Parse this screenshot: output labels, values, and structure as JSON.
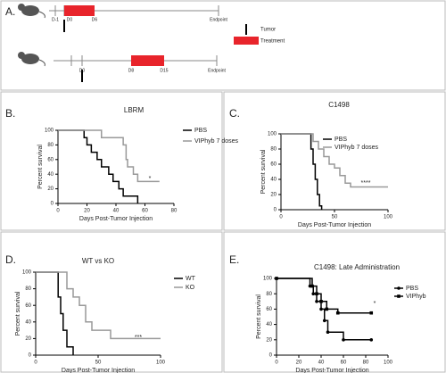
{
  "panels": [
    "A.",
    "B.",
    "C.",
    "D.",
    "E."
  ],
  "schematic": {
    "timeline1": [
      "D-1",
      "D0",
      "D6",
      "Endpoint"
    ],
    "timeline2": [
      "D0",
      "D8",
      "D15",
      "Endpoint"
    ],
    "legend": [
      "Tumor",
      "Treatment"
    ]
  },
  "chart_data": [
    {
      "type": "line",
      "step": true,
      "title": "LBRM",
      "xlabel": "Days Post-Tumor Injection",
      "ylabel": "Percent survival",
      "xlim": [
        0,
        80
      ],
      "xticks": [
        0,
        20,
        40,
        60,
        80
      ],
      "ylim": [
        0,
        100
      ],
      "yticks": [
        0,
        20,
        40,
        60,
        80,
        100
      ],
      "annotation": "*",
      "series": [
        {
          "name": "PBS",
          "color": "#000000",
          "x": [
            0,
            18,
            20,
            23,
            27,
            30,
            35,
            38,
            42,
            45,
            55
          ],
          "values": [
            100,
            90,
            80,
            70,
            60,
            50,
            40,
            30,
            20,
            10,
            0
          ]
        },
        {
          "name": "VIPhyb 7 doses",
          "color": "#999999",
          "x": [
            0,
            30,
            45,
            47,
            48,
            52,
            55,
            70
          ],
          "values": [
            100,
            90,
            80,
            60,
            50,
            40,
            30,
            30
          ]
        }
      ]
    },
    {
      "type": "line",
      "step": true,
      "title": "C1498",
      "xlabel": "Days Post-Tumor Injection",
      "ylabel": "Percent survival",
      "xlim": [
        0,
        100
      ],
      "xticks": [
        0,
        50,
        100
      ],
      "ylim": [
        0,
        100
      ],
      "yticks": [
        0,
        20,
        40,
        60,
        80,
        100
      ],
      "annotation": "****",
      "series": [
        {
          "name": "PBS",
          "color": "#000000",
          "x": [
            0,
            28,
            30,
            32,
            34,
            36,
            38
          ],
          "values": [
            100,
            80,
            60,
            40,
            20,
            5,
            0
          ]
        },
        {
          "name": "VIPhyb 7 doses",
          "color": "#999999",
          "x": [
            0,
            30,
            35,
            40,
            45,
            50,
            55,
            60,
            65,
            100
          ],
          "values": [
            100,
            90,
            80,
            70,
            60,
            55,
            45,
            35,
            30,
            30
          ]
        }
      ]
    },
    {
      "type": "line",
      "step": true,
      "title": "WT vs KO",
      "xlabel": "Days Post-Tumor Injection",
      "ylabel": "Percent survival",
      "xlim": [
        0,
        100
      ],
      "xticks": [
        0,
        50,
        100
      ],
      "ylim": [
        0,
        100
      ],
      "yticks": [
        0,
        20,
        40,
        60,
        80,
        100
      ],
      "annotation": "***",
      "series": [
        {
          "name": "WT",
          "color": "#000000",
          "x": [
            0,
            18,
            20,
            22,
            25,
            30
          ],
          "values": [
            100,
            70,
            50,
            30,
            10,
            0
          ]
        },
        {
          "name": "KO",
          "color": "#999999",
          "x": [
            0,
            25,
            30,
            35,
            40,
            45,
            60,
            100
          ],
          "values": [
            100,
            80,
            70,
            60,
            40,
            30,
            20,
            20
          ]
        }
      ]
    },
    {
      "type": "line",
      "step": true,
      "marker": true,
      "title": "C1498: Late Administration",
      "xlabel": "Days Post-Tumor Injection",
      "ylabel": "Percent survival",
      "xlim": [
        0,
        100
      ],
      "xticks": [
        0,
        20,
        40,
        60,
        80,
        100
      ],
      "ylim": [
        0,
        100
      ],
      "yticks": [
        0,
        20,
        40,
        60,
        80,
        100
      ],
      "annotation": "*",
      "series": [
        {
          "name": "PBS",
          "color": "#000000",
          "x": [
            0,
            30,
            33,
            36,
            40,
            43,
            46,
            60,
            85
          ],
          "values": [
            100,
            90,
            80,
            70,
            60,
            45,
            30,
            20,
            20
          ]
        },
        {
          "name": "VIPhyb",
          "color": "#000000",
          "x": [
            0,
            32,
            36,
            40,
            45,
            55,
            85
          ],
          "values": [
            100,
            90,
            80,
            70,
            60,
            55,
            55
          ]
        }
      ]
    }
  ]
}
